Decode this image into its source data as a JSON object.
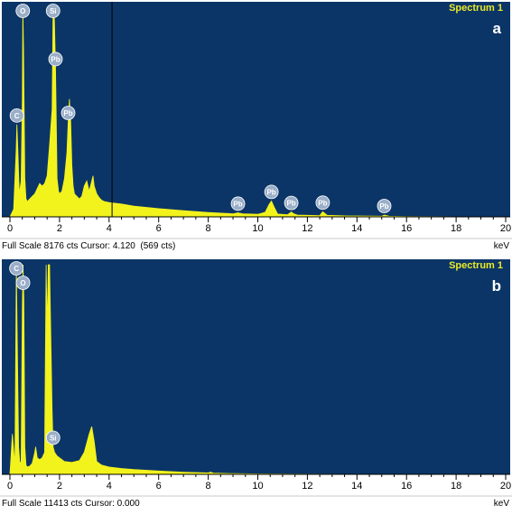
{
  "colors": {
    "plot_background": "#0b3567",
    "spectrum_fill": "#f2f21d",
    "label_text": "#e9ea2a",
    "marker_fill": "#9aaec8",
    "cursor_line": "#000000",
    "axis_background": "#ffffff"
  },
  "panel_a": {
    "spectrum_label": "Spectrum 1",
    "panel_letter": "a",
    "status": "Full Scale 8176 cts Cursor: 4.120  (569 cts)",
    "unit": "keV"
  },
  "panel_b": {
    "spectrum_label": "Spectrum 1",
    "panel_letter": "b",
    "status": "Full Scale 11413 cts Cursor: 0.000",
    "unit": "keV"
  },
  "chart_data": [
    {
      "type": "area",
      "panel": "a",
      "title": "Spectrum 1",
      "xlabel": "keV",
      "xlim": [
        0,
        20
      ],
      "ylim": [
        0,
        8176
      ],
      "x_ticks": [
        "0",
        "2",
        "4",
        "6",
        "8",
        "10",
        "12",
        "14",
        "16",
        "18",
        "20"
      ],
      "full_scale_cts": 8176,
      "cursor": {
        "x": 4.12,
        "cts": 569
      },
      "x": [
        0.0,
        0.15,
        0.25,
        0.28,
        0.32,
        0.38,
        0.45,
        0.5,
        0.52,
        0.55,
        0.6,
        0.65,
        0.7,
        0.75,
        0.8,
        0.9,
        1.0,
        1.1,
        1.2,
        1.3,
        1.4,
        1.5,
        1.6,
        1.7,
        1.74,
        1.78,
        1.84,
        1.9,
        1.96,
        2.0,
        2.1,
        2.2,
        2.3,
        2.35,
        2.4,
        2.45,
        2.5,
        2.55,
        2.6,
        2.7,
        2.8,
        2.9,
        3.0,
        3.1,
        3.2,
        3.3,
        3.35,
        3.4,
        3.5,
        3.6,
        3.7,
        3.8,
        4.0,
        4.5,
        5.0,
        6.0,
        7.0,
        8.0,
        9.0,
        9.2,
        9.4,
        10.0,
        10.3,
        10.45,
        10.55,
        10.65,
        10.8,
        11.2,
        11.35,
        11.45,
        11.6,
        12.0,
        12.5,
        12.62,
        12.8,
        13.5,
        14.5,
        15.0,
        15.1,
        15.3,
        16.0,
        18.0,
        20.0
      ],
      "values": [
        0,
        300,
        2600,
        3600,
        2600,
        900,
        1400,
        4600,
        8176,
        6500,
        1500,
        700,
        600,
        650,
        700,
        800,
        900,
        1100,
        1300,
        1200,
        1300,
        1600,
        2800,
        4200,
        8176,
        8176,
        5800,
        1500,
        1000,
        900,
        1000,
        1500,
        2500,
        3700,
        4600,
        3700,
        2000,
        1200,
        900,
        800,
        700,
        800,
        1200,
        1400,
        1000,
        1400,
        1600,
        1200,
        900,
        750,
        650,
        600,
        560,
        500,
        420,
        320,
        240,
        170,
        120,
        160,
        120,
        100,
        180,
        480,
        620,
        400,
        110,
        80,
        190,
        120,
        70,
        60,
        50,
        200,
        60,
        40,
        30,
        25,
        70,
        25,
        15,
        5,
        0
      ],
      "element_labels": [
        {
          "label": "C",
          "x": 0.28
        },
        {
          "label": "O",
          "x": 0.52
        },
        {
          "label": "Si",
          "x": 1.74
        },
        {
          "label": "Pb",
          "x": 1.84
        },
        {
          "label": "Pb",
          "x": 2.35
        },
        {
          "label": "Pb",
          "x": 9.2
        },
        {
          "label": "Pb",
          "x": 10.55
        },
        {
          "label": "Pb",
          "x": 11.35
        },
        {
          "label": "Pb",
          "x": 12.62
        },
        {
          "label": "Pb",
          "x": 15.1
        }
      ]
    },
    {
      "type": "area",
      "panel": "b",
      "title": "Spectrum 1",
      "xlabel": "keV",
      "xlim": [
        0,
        20
      ],
      "ylim": [
        0,
        11413
      ],
      "x_ticks": [
        "0",
        "2",
        "4",
        "6",
        "8",
        "10",
        "12",
        "14",
        "16",
        "18",
        "20"
      ],
      "full_scale_cts": 11413,
      "cursor": {
        "x": 0.0
      },
      "x": [
        0.0,
        0.1,
        0.2,
        0.26,
        0.3,
        0.35,
        0.4,
        0.45,
        0.5,
        0.53,
        0.56,
        0.6,
        0.65,
        0.7,
        0.8,
        0.9,
        1.0,
        1.04,
        1.1,
        1.2,
        1.3,
        1.4,
        1.46,
        1.5,
        1.55,
        1.6,
        1.7,
        1.74,
        1.8,
        1.9,
        2.0,
        2.2,
        2.5,
        2.8,
        3.0,
        3.2,
        3.3,
        3.4,
        3.5,
        3.7,
        4.0,
        4.5,
        5.0,
        6.0,
        7.0,
        8.0,
        8.1,
        8.2,
        9.0,
        10.0,
        12.0,
        15.0,
        20.0
      ],
      "values": [
        0,
        2200,
        500,
        11413,
        7000,
        1500,
        600,
        700,
        9000,
        11413,
        9500,
        1500,
        500,
        400,
        450,
        600,
        1200,
        1500,
        900,
        800,
        900,
        1200,
        11413,
        8000,
        11413,
        11413,
        3500,
        1500,
        1200,
        1000,
        900,
        700,
        650,
        750,
        1200,
        2200,
        2600,
        1800,
        700,
        500,
        400,
        320,
        260,
        180,
        120,
        80,
        120,
        70,
        40,
        25,
        10,
        5,
        0
      ],
      "element_labels": [
        {
          "label": "C",
          "x": 0.26
        },
        {
          "label": "O",
          "x": 0.53
        },
        {
          "label": "Si",
          "x": 1.74
        }
      ]
    }
  ]
}
